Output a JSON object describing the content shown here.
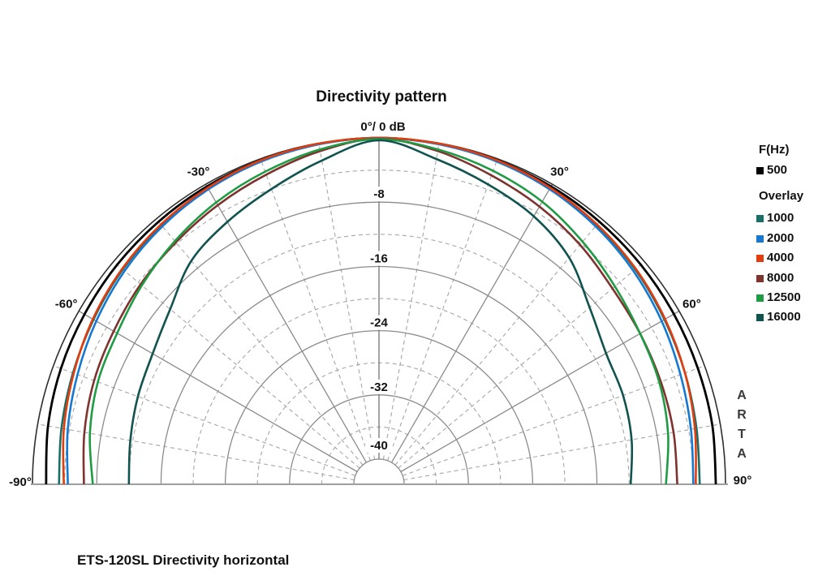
{
  "window": {
    "background": "#ffffff"
  },
  "chart": {
    "title": "Directivity pattern",
    "apex_label": "0°/ 0 dB",
    "watermark": "ARTA",
    "caption": "ETS-120SL Directivity horizontal"
  },
  "legend": {
    "heading": "F(Hz)",
    "overlay_heading": "Overlay"
  },
  "chart_data": {
    "type": "line",
    "projection": "semicircular-polar",
    "title": "Directivity pattern",
    "subtitle": "ETS-120SL Directivity horizontal",
    "angle_unit": "deg",
    "level_unit": "dB",
    "angle_range": [
      -90,
      90
    ],
    "db_range": [
      0,
      -40
    ],
    "apex_tick_label": "0°/ 0 dB",
    "angle_ticks": [
      {
        "deg": -90,
        "label": "-90°"
      },
      {
        "deg": -60,
        "label": "-60°"
      },
      {
        "deg": -30,
        "label": "-30°"
      },
      {
        "deg": 30,
        "label": "30°"
      },
      {
        "deg": 60,
        "label": "60°"
      },
      {
        "deg": 90,
        "label": "90°"
      }
    ],
    "db_ticks": [
      {
        "db": -8,
        "label": "-8"
      },
      {
        "db": -16,
        "label": "-16"
      },
      {
        "db": -24,
        "label": "-24"
      },
      {
        "db": -32,
        "label": "-32"
      },
      {
        "db": -40,
        "label": "-40"
      }
    ],
    "grid": {
      "solid_ring_step_db": 8,
      "dashed_ring_step_db": 4,
      "solid_radial_step_deg": 30,
      "dashed_radial_step_deg": 10,
      "solid_color": "#8b8b8b",
      "dashed_color": "#a6a6a6",
      "outer_ring_color": "#2e2e2e",
      "baseline_color": "#9e9e9e"
    },
    "legend_heading": "F(Hz)",
    "overlay_heading": "Overlay",
    "angles_deg": [
      -90,
      -80,
      -70,
      -60,
      -50,
      -40,
      -30,
      -20,
      -10,
      0,
      10,
      20,
      30,
      40,
      50,
      60,
      70,
      80,
      90
    ],
    "series": [
      {
        "name": "500",
        "role": "primary",
        "color": "#000000",
        "values_db": [
          -1.7,
          -1.3,
          -1.0,
          -0.8,
          -0.6,
          -0.45,
          -0.3,
          -0.2,
          -0.1,
          0,
          -0.1,
          -0.2,
          -0.3,
          -0.45,
          -0.6,
          -0.75,
          -0.9,
          -1.0,
          -1.2
        ]
      },
      {
        "name": "1000",
        "role": "overlay",
        "color": "#1a6e66",
        "values_db": [
          -3.3,
          -3.0,
          -2.6,
          -2.1,
          -1.5,
          -1.0,
          -0.6,
          -0.3,
          -0.1,
          0,
          -0.1,
          -0.3,
          -0.6,
          -1.0,
          -1.5,
          -2.1,
          -2.6,
          -3.0,
          -3.2
        ]
      },
      {
        "name": "2000",
        "role": "overlay",
        "color": "#1778d2",
        "values_db": [
          -4.4,
          -3.8,
          -3.2,
          -2.5,
          -1.8,
          -1.2,
          -0.7,
          -0.35,
          -0.15,
          0,
          -0.15,
          -0.35,
          -0.7,
          -1.2,
          -1.8,
          -2.5,
          -3.2,
          -3.7,
          -4.0
        ]
      },
      {
        "name": "4000",
        "role": "overlay",
        "color": "#e23d0e",
        "values_db": [
          -3.9,
          -3.3,
          -2.7,
          -2.0,
          -1.4,
          -0.9,
          -0.5,
          -0.2,
          -0.05,
          0,
          -0.05,
          -0.2,
          -0.5,
          -0.9,
          -1.4,
          -2.0,
          -2.6,
          -3.2,
          -3.7
        ]
      },
      {
        "name": "8000",
        "role": "overlay",
        "color": "#7e332e",
        "values_db": [
          -6.4,
          -5.9,
          -5.4,
          -5.0,
          -4.4,
          -3.8,
          -3.0,
          -2.1,
          -1.0,
          -0.1,
          -1.0,
          -2.2,
          -3.2,
          -4.2,
          -5.2,
          -5.6,
          -5.8,
          -5.9,
          -6.0
        ]
      },
      {
        "name": "12500",
        "role": "overlay",
        "color": "#1f9b43",
        "values_db": [
          -7.5,
          -6.6,
          -5.9,
          -5.5,
          -4.6,
          -3.6,
          -2.6,
          -1.7,
          -0.8,
          -0.15,
          -0.8,
          -1.6,
          -2.5,
          -3.7,
          -4.8,
          -5.6,
          -6.0,
          -6.6,
          -7.4
        ]
      },
      {
        "name": "16000",
        "role": "overlay",
        "color": "#11534f",
        "values_db": [
          -12.0,
          -11.7,
          -11.2,
          -10.6,
          -9.2,
          -6.8,
          -5.4,
          -4.0,
          -2.2,
          -0.3,
          -2.0,
          -3.4,
          -4.6,
          -6.3,
          -8.9,
          -10.5,
          -10.8,
          -11.2,
          -11.8
        ]
      }
    ]
  }
}
